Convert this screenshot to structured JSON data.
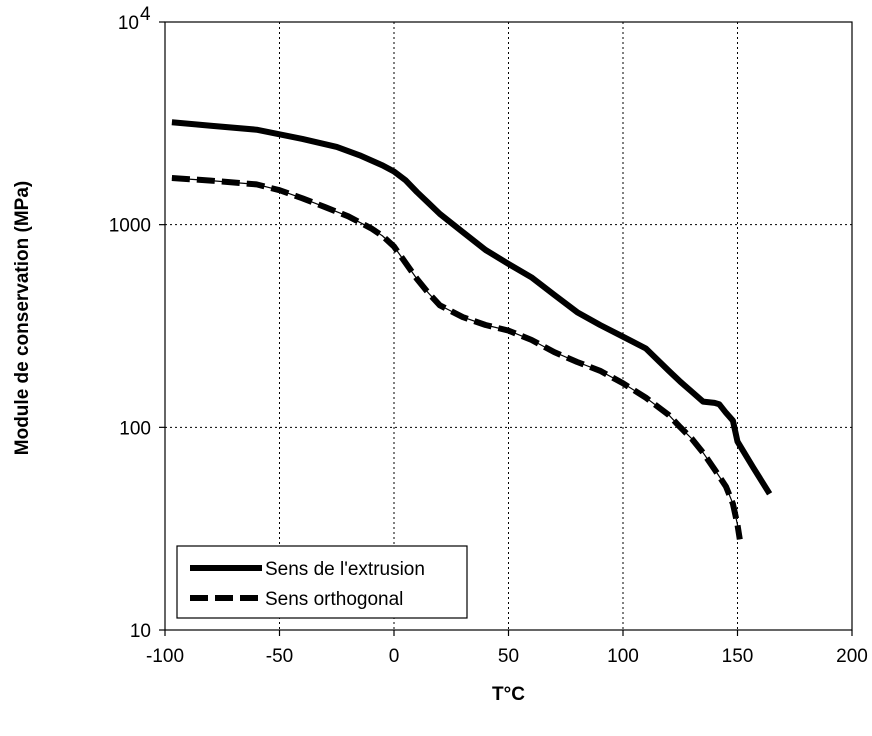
{
  "chart_data": {
    "type": "line",
    "title": "",
    "xlabel": "T°C",
    "ylabel": "Module de conservation (MPa)",
    "xlim": [
      -100,
      200
    ],
    "ylim": [
      10,
      10000
    ],
    "yscale": "log",
    "grid": true,
    "legend_position": "bottom-left",
    "xticks": [
      "-100",
      "-50",
      "0",
      "50",
      "100",
      "150",
      "200"
    ],
    "yticks": [
      {
        "value": 10,
        "label": "10"
      },
      {
        "value": 100,
        "label": "100"
      },
      {
        "value": 1000,
        "label": "1000"
      },
      {
        "value": 10000,
        "label": "10",
        "exponent": "4"
      }
    ],
    "series": [
      {
        "name": "Sens de l'extrusion",
        "style": "solid",
        "color": "#000000",
        "x": [
          -97,
          -80,
          -60,
          -40,
          -25,
          -15,
          -5,
          0,
          5,
          10,
          15,
          20,
          30,
          40,
          50,
          60,
          70,
          80,
          90,
          100,
          110,
          120,
          125,
          130,
          135,
          140,
          142,
          145,
          148,
          150,
          152,
          157,
          164
        ],
        "y": [
          3200,
          3080,
          2940,
          2650,
          2420,
          2200,
          1960,
          1830,
          1660,
          1450,
          1280,
          1130,
          920,
          750,
          640,
          550,
          450,
          370,
          320,
          280,
          245,
          190,
          168,
          150,
          134,
          132,
          130,
          118,
          108,
          85,
          78,
          63,
          47
        ]
      },
      {
        "name": "Sens orthogonal",
        "style": "dashed",
        "color": "#000000",
        "x": [
          -97,
          -80,
          -60,
          -50,
          -40,
          -30,
          -20,
          -10,
          -5,
          0,
          5,
          10,
          15,
          20,
          30,
          40,
          50,
          60,
          70,
          80,
          90,
          100,
          110,
          120,
          125,
          130,
          135,
          140,
          145,
          148,
          150,
          151
        ],
        "y": [
          1700,
          1650,
          1580,
          1480,
          1350,
          1220,
          1100,
          960,
          880,
          780,
          650,
          540,
          460,
          400,
          350,
          320,
          300,
          270,
          235,
          210,
          190,
          165,
          140,
          115,
          100,
          88,
          75,
          62,
          51,
          42,
          33,
          28
        ]
      }
    ]
  }
}
